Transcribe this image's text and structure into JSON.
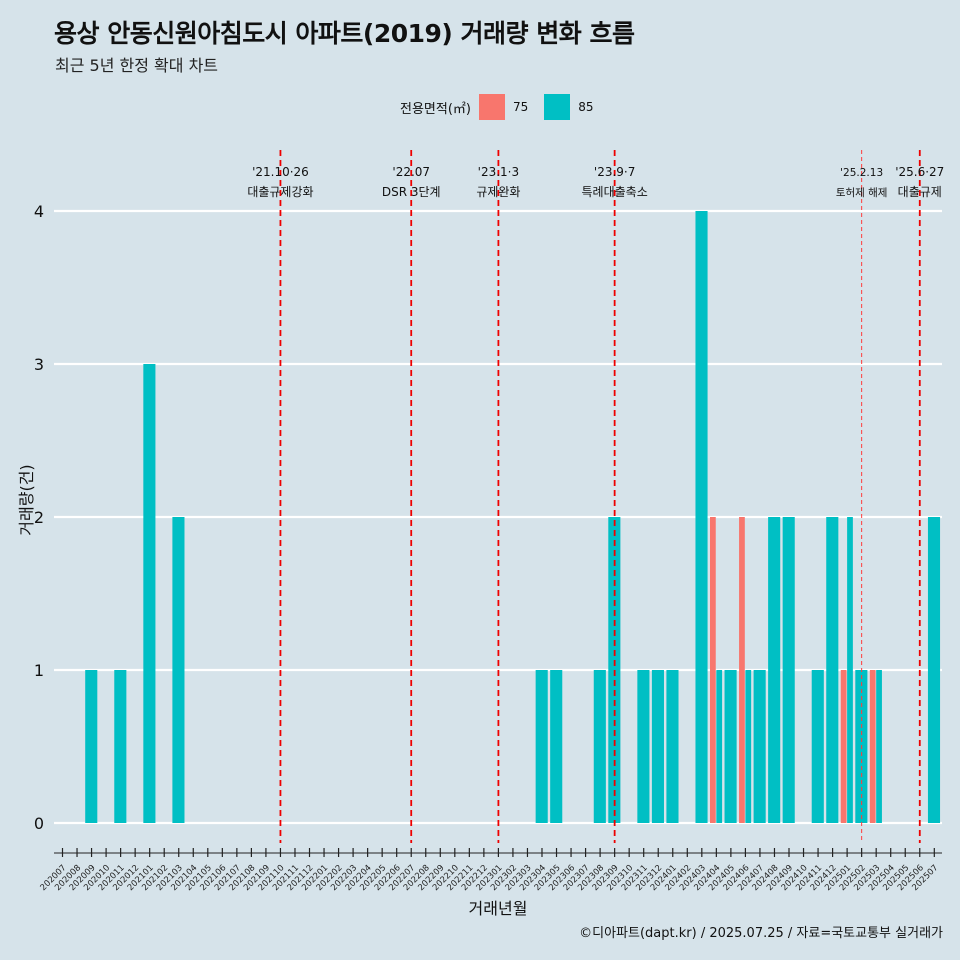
{
  "title": "용상 안동신원아침도시 아파트(2019) 거래량 변화 흐름",
  "subtitle": "최근 5년 한정 확대 차트",
  "caption": "©디아파트(dapt.kr) / 2025.07.25 / 자료=국토교통부 실거래가",
  "legend": {
    "title": "전용면적(㎡)",
    "items": [
      {
        "label": "75",
        "color": "#F8766D"
      },
      {
        "label": "85",
        "color": "#00BFC4"
      }
    ]
  },
  "chart_data": {
    "type": "bar",
    "xlabel": "거래년월",
    "ylabel": "거래량(건)",
    "ylim": [
      0,
      4
    ],
    "yticks": [
      0,
      1,
      2,
      3,
      4
    ],
    "grid": true,
    "legend_position": "top",
    "categories": [
      "202007",
      "202008",
      "202009",
      "202010",
      "202011",
      "202012",
      "202101",
      "202102",
      "202103",
      "202104",
      "202105",
      "202106",
      "202107",
      "202108",
      "202109",
      "202110",
      "202111",
      "202112",
      "202201",
      "202202",
      "202203",
      "202204",
      "202205",
      "202206",
      "202207",
      "202208",
      "202209",
      "202210",
      "202211",
      "202212",
      "202301",
      "202302",
      "202303",
      "202304",
      "202305",
      "202306",
      "202307",
      "202308",
      "202309",
      "202310",
      "202311",
      "202312",
      "202401",
      "202402",
      "202403",
      "202404",
      "202405",
      "202406",
      "202407",
      "202408",
      "202409",
      "202410",
      "202411",
      "202412",
      "202501",
      "202502",
      "202503",
      "202504",
      "202505",
      "202506",
      "202507"
    ],
    "series": [
      {
        "name": "75",
        "color": "#F8766D",
        "values": [
          0,
          0,
          0,
          0,
          0,
          0,
          0,
          0,
          0,
          0,
          0,
          0,
          0,
          0,
          0,
          0,
          0,
          0,
          0,
          0,
          0,
          0,
          0,
          0,
          0,
          0,
          0,
          0,
          0,
          0,
          0,
          0,
          0,
          0,
          0,
          0,
          0,
          0,
          0,
          0,
          0,
          0,
          0,
          0,
          0,
          2,
          0,
          2,
          0,
          0,
          0,
          0,
          0,
          0,
          1,
          0,
          1,
          0,
          0,
          0,
          0
        ]
      },
      {
        "name": "85",
        "color": "#00BFC4",
        "values": [
          0,
          0,
          1,
          0,
          1,
          0,
          3,
          0,
          2,
          0,
          0,
          0,
          0,
          0,
          0,
          0,
          0,
          0,
          0,
          0,
          0,
          0,
          0,
          0,
          0,
          0,
          0,
          0,
          0,
          0,
          0,
          0,
          0,
          1,
          1,
          0,
          0,
          1,
          2,
          0,
          1,
          1,
          1,
          0,
          4,
          1,
          1,
          1,
          1,
          2,
          2,
          0,
          1,
          2,
          2,
          1,
          1,
          0,
          0,
          0,
          2
        ]
      }
    ],
    "annotations": [
      {
        "date": "202110",
        "label1": "'21.10·26",
        "label2": "대출규제강화",
        "style": "dashed"
      },
      {
        "date": "202207",
        "label1": "'22.07",
        "label2": "DSR 3단계",
        "style": "dashed"
      },
      {
        "date": "202301",
        "label1": "'23.1·3",
        "label2": "규제완화",
        "style": "dashed"
      },
      {
        "date": "202309",
        "label1": "'23.9·7",
        "label2": "특례대출축소",
        "style": "dashed"
      },
      {
        "date": "202502",
        "label1": "'25.2.13",
        "label2": "토허제 해제",
        "style": "thin"
      },
      {
        "date": "202506",
        "label1": "'25.6·27",
        "label2": "대출규제",
        "style": "dashed"
      }
    ]
  }
}
